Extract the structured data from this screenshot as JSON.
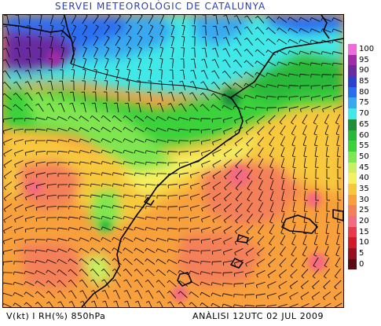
{
  "header": {
    "title": "SERVEI METEOROLÒGIC DE CATALUNYA"
  },
  "footer": {
    "variables": "V(kt) I RH(%) 850hPa",
    "analysis": "ANÀLISI 12UTC 02 JUL 2009"
  },
  "legend": {
    "items": [
      {
        "label": "100",
        "color": "#f06ad8"
      },
      {
        "label": "95",
        "color": "#a02ca8"
      },
      {
        "label": "90",
        "color": "#6a2aa0"
      },
      {
        "label": "85",
        "color": "#2d3fd0"
      },
      {
        "label": "80",
        "color": "#2a6ef0"
      },
      {
        "label": "75",
        "color": "#38a8f0"
      },
      {
        "label": "70",
        "color": "#40e8e8"
      },
      {
        "label": "65",
        "color": "#1d8f3a"
      },
      {
        "label": "60",
        "color": "#2ab83a"
      },
      {
        "label": "55",
        "color": "#3ad23a"
      },
      {
        "label": "50",
        "color": "#80e650"
      },
      {
        "label": "45",
        "color": "#c8f060"
      },
      {
        "label": "40",
        "color": "#f4f060"
      },
      {
        "label": "35",
        "color": "#f8c83c"
      },
      {
        "label": "30",
        "color": "#f8a03c"
      },
      {
        "label": "25",
        "color": "#f4805a"
      },
      {
        "label": "20",
        "color": "#f46a80"
      },
      {
        "label": "15",
        "color": "#e83a48"
      },
      {
        "label": "10",
        "color": "#d01a28"
      },
      {
        "label": "5",
        "color": "#961020"
      },
      {
        "label": "0",
        "color": "#5c0a12"
      }
    ]
  }
}
